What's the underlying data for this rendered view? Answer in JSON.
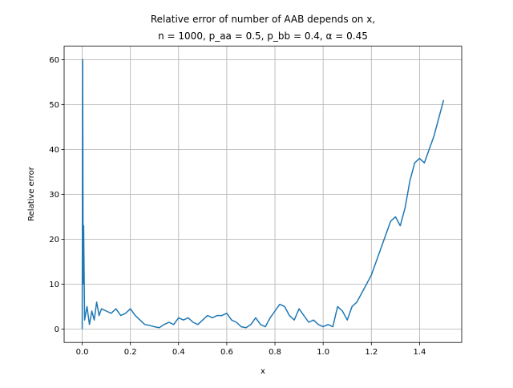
{
  "chart_data": {
    "type": "line",
    "title": [
      "Relative error of number of AAB depends on x,",
      "n = 1000, p_aa = 0.5, p_bb = 0.4, α = 0.45"
    ],
    "xlabel": "x",
    "ylabel": "Relative error",
    "x": [
      0,
      0.002,
      0.004,
      0.006,
      0.01,
      0.02,
      0.03,
      0.04,
      0.05,
      0.06,
      0.07,
      0.08,
      0.1,
      0.12,
      0.14,
      0.16,
      0.18,
      0.2,
      0.22,
      0.24,
      0.26,
      0.28,
      0.3,
      0.32,
      0.34,
      0.36,
      0.38,
      0.4,
      0.42,
      0.44,
      0.46,
      0.48,
      0.5,
      0.52,
      0.54,
      0.56,
      0.58,
      0.6,
      0.62,
      0.64,
      0.66,
      0.68,
      0.7,
      0.72,
      0.74,
      0.76,
      0.78,
      0.8,
      0.82,
      0.84,
      0.86,
      0.88,
      0.9,
      0.92,
      0.94,
      0.96,
      0.98,
      1.0,
      1.02,
      1.04,
      1.06,
      1.08,
      1.1,
      1.12,
      1.14,
      1.16,
      1.18,
      1.2,
      1.22,
      1.24,
      1.26,
      1.28,
      1.3,
      1.32,
      1.34,
      1.36,
      1.38,
      1.4,
      1.42,
      1.44,
      1.46,
      1.48,
      1.5
    ],
    "series": [
      {
        "name": "Relative error",
        "color": "#1f77b4",
        "values": [
          0,
          60,
          10,
          23,
          2,
          5,
          1,
          4,
          2,
          6,
          3,
          4.5,
          4,
          3.5,
          4.5,
          3,
          3.5,
          4.5,
          3,
          2,
          1,
          0.8,
          0.5,
          0.3,
          1,
          1.5,
          1,
          2.5,
          2,
          2.5,
          1.5,
          1,
          2,
          3,
          2.5,
          3,
          3,
          3.5,
          2,
          1.5,
          0.5,
          0.3,
          1,
          2.5,
          1,
          0.5,
          2.5,
          4,
          5.5,
          5,
          3,
          2,
          4.5,
          3,
          1.5,
          2,
          1,
          0.5,
          1,
          0.5,
          5,
          4,
          2,
          5,
          6,
          8,
          10,
          12,
          15,
          18,
          21,
          24,
          25,
          23,
          27,
          33,
          37,
          38,
          37,
          40,
          43,
          47,
          51
        ]
      }
    ],
    "xlim": [
      -0.075,
      1.575
    ],
    "ylim": [
      -3,
      63
    ],
    "xticks": [
      {
        "value": 0,
        "label": "0.0"
      },
      {
        "value": 0.2,
        "label": "0.2"
      },
      {
        "value": 0.4,
        "label": "0.4"
      },
      {
        "value": 0.6,
        "label": "0.6"
      },
      {
        "value": 0.8,
        "label": "0.8"
      },
      {
        "value": 1,
        "label": "1.0"
      },
      {
        "value": 1.2,
        "label": "1.2"
      },
      {
        "value": 1.4,
        "label": "1.4"
      }
    ],
    "yticks": [
      0,
      10,
      20,
      30,
      40,
      50,
      60
    ],
    "grid": true
  }
}
